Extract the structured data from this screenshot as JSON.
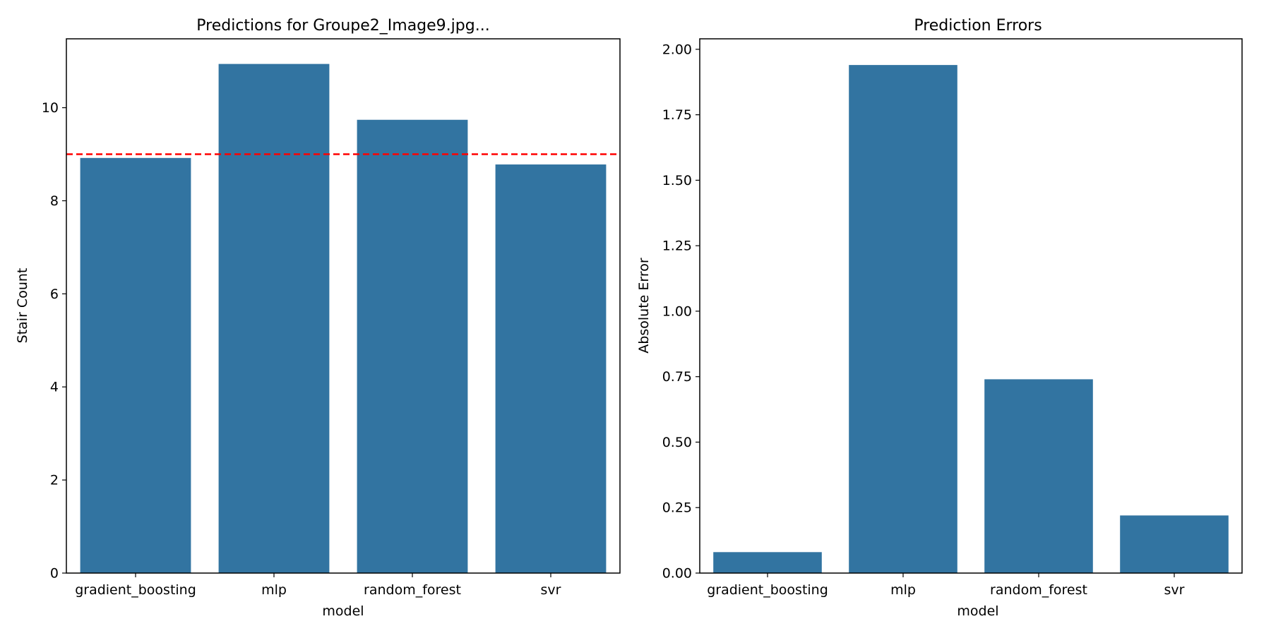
{
  "chart_data": [
    {
      "type": "bar",
      "title": "Predictions for Groupe2_Image9.jpg...",
      "xlabel": "model",
      "ylabel": "Stair Count",
      "categories": [
        "gradient_boosting",
        "mlp",
        "random_forest",
        "svr"
      ],
      "values": [
        8.92,
        10.94,
        9.74,
        8.78
      ],
      "ylim": [
        0,
        11.48
      ],
      "yticks": [
        0,
        2,
        4,
        6,
        8,
        10
      ],
      "ytick_labels": [
        "0",
        "2",
        "4",
        "6",
        "8",
        "10"
      ],
      "reference_line": {
        "y": 9,
        "color": "#ff0000",
        "style": "dashed"
      },
      "bar_color": "#3274a1",
      "grid": false,
      "legend": false
    },
    {
      "type": "bar",
      "title": "Prediction Errors",
      "xlabel": "model",
      "ylabel": "Absolute Error",
      "categories": [
        "gradient_boosting",
        "mlp",
        "random_forest",
        "svr"
      ],
      "values": [
        0.08,
        1.94,
        0.74,
        0.22
      ],
      "ylim": [
        0,
        2.04
      ],
      "yticks": [
        0,
        0.25,
        0.5,
        0.75,
        1,
        1.25,
        1.5,
        1.75,
        2
      ],
      "ytick_labels": [
        "0.00",
        "0.25",
        "0.50",
        "0.75",
        "1.00",
        "1.25",
        "1.50",
        "1.75",
        "2.00"
      ],
      "bar_color": "#3274a1",
      "grid": false,
      "legend": false
    }
  ]
}
